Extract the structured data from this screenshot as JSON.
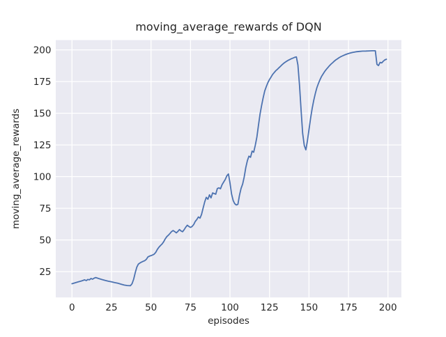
{
  "figure": {
    "kind": "matplotlib-seaborn-figure",
    "background": "#ffffff"
  },
  "chart_data": {
    "type": "line",
    "title": "moving_average_rewards of DQN",
    "xlabel": "episodes",
    "ylabel": "moving_average_rewards",
    "x_ticks": [
      0,
      25,
      50,
      75,
      100,
      125,
      150,
      175,
      200
    ],
    "y_ticks": [
      25,
      50,
      75,
      100,
      125,
      150,
      175,
      200
    ],
    "xlim": [
      -10.3,
      208.5
    ],
    "ylim": [
      4.6,
      207.7
    ],
    "grid": true,
    "legend": "none",
    "style": {
      "plot_background": "#eaeaf2",
      "grid_color": "#ffffff",
      "text_color": "#262626",
      "line_color": "#4c72b0",
      "line_width": 1.8
    },
    "series": [
      {
        "name": "moving_average_rewards",
        "color": "#4c72b0",
        "points": [
          [
            0,
            15.4
          ],
          [
            2,
            16.2
          ],
          [
            4,
            16.9
          ],
          [
            6,
            17.6
          ],
          [
            8,
            18.5
          ],
          [
            9,
            17.9
          ],
          [
            10,
            18.8
          ],
          [
            11,
            18.5
          ],
          [
            12,
            19.6
          ],
          [
            13,
            19.0
          ],
          [
            14,
            19.8
          ],
          [
            15,
            20.3
          ],
          [
            17,
            19.5
          ],
          [
            19,
            18.7
          ],
          [
            21,
            18.0
          ],
          [
            23,
            17.4
          ],
          [
            25,
            16.9
          ],
          [
            27,
            16.3
          ],
          [
            29,
            15.8
          ],
          [
            31,
            15.1
          ],
          [
            33,
            14.4
          ],
          [
            35,
            14.0
          ],
          [
            37,
            13.9
          ],
          [
            38,
            15.5
          ],
          [
            39,
            19.0
          ],
          [
            40,
            24.0
          ],
          [
            41,
            28.5
          ],
          [
            42,
            31.0
          ],
          [
            43,
            31.8
          ],
          [
            44,
            32.5
          ],
          [
            45,
            33.1
          ],
          [
            46,
            33.6
          ],
          [
            47,
            34.6
          ],
          [
            48,
            36.5
          ],
          [
            49,
            37.2
          ],
          [
            50,
            37.6
          ],
          [
            51,
            38.1
          ],
          [
            52,
            38.7
          ],
          [
            53,
            40.2
          ],
          [
            54,
            42.5
          ],
          [
            55,
            44.2
          ],
          [
            56,
            45.6
          ],
          [
            57,
            46.8
          ],
          [
            58,
            48.5
          ],
          [
            59,
            50.8
          ],
          [
            60,
            52.6
          ],
          [
            61,
            53.7
          ],
          [
            62,
            55.1
          ],
          [
            63,
            56.6
          ],
          [
            64,
            57.4
          ],
          [
            65,
            56.6
          ],
          [
            66,
            55.6
          ],
          [
            67,
            56.7
          ],
          [
            68,
            58.2
          ],
          [
            69,
            57.1
          ],
          [
            70,
            56.5
          ],
          [
            71,
            58.1
          ],
          [
            72,
            60.1
          ],
          [
            73,
            61.6
          ],
          [
            74,
            60.6
          ],
          [
            75,
            59.9
          ],
          [
            76,
            60.6
          ],
          [
            77,
            62.1
          ],
          [
            78,
            64.6
          ],
          [
            79,
            66.1
          ],
          [
            80,
            68.1
          ],
          [
            81,
            67.2
          ],
          [
            82,
            70.1
          ],
          [
            83,
            75.2
          ],
          [
            84,
            80.1
          ],
          [
            85,
            83.6
          ],
          [
            86,
            82.1
          ],
          [
            87,
            85.6
          ],
          [
            88,
            83.2
          ],
          [
            89,
            87.1
          ],
          [
            90,
            86.6
          ],
          [
            91,
            86.1
          ],
          [
            92,
            90.6
          ],
          [
            93,
            91.1
          ],
          [
            94,
            90.4
          ],
          [
            95,
            93.6
          ],
          [
            96,
            95.7
          ],
          [
            97,
            97.7
          ],
          [
            98,
            100.6
          ],
          [
            99,
            102.1
          ],
          [
            100,
            95.1
          ],
          [
            101,
            86.2
          ],
          [
            102,
            81.1
          ],
          [
            103,
            78.6
          ],
          [
            104,
            77.6
          ],
          [
            105,
            78.1
          ],
          [
            106,
            85.1
          ],
          [
            107,
            90.6
          ],
          [
            108,
            94.1
          ],
          [
            109,
            99.6
          ],
          [
            110,
            107.1
          ],
          [
            111,
            112.6
          ],
          [
            112,
            116.1
          ],
          [
            113,
            115.2
          ],
          [
            114,
            120.1
          ],
          [
            115,
            119.2
          ],
          [
            116,
            124.6
          ],
          [
            117,
            131.1
          ],
          [
            118,
            140.1
          ],
          [
            119,
            149.1
          ],
          [
            120,
            156.1
          ],
          [
            121,
            162.1
          ],
          [
            122,
            167.6
          ],
          [
            123,
            171.1
          ],
          [
            124,
            174.1
          ],
          [
            125,
            176.6
          ],
          [
            126,
            178.6
          ],
          [
            127,
            180.6
          ],
          [
            128,
            182.1
          ],
          [
            129,
            183.6
          ],
          [
            130,
            184.6
          ],
          [
            131,
            185.9
          ],
          [
            132,
            187.1
          ],
          [
            133,
            188.3
          ],
          [
            134,
            189.4
          ],
          [
            135,
            190.3
          ],
          [
            136,
            191.1
          ],
          [
            137,
            191.9
          ],
          [
            138,
            192.5
          ],
          [
            139,
            193.1
          ],
          [
            140,
            193.6
          ],
          [
            141,
            194.1
          ],
          [
            142,
            194.4
          ],
          [
            143,
            188.1
          ],
          [
            144,
            172.1
          ],
          [
            145,
            152.1
          ],
          [
            146,
            134.1
          ],
          [
            147,
            124.6
          ],
          [
            148,
            121.1
          ],
          [
            149,
            128.1
          ],
          [
            150,
            137.1
          ],
          [
            151,
            146.1
          ],
          [
            152,
            153.6
          ],
          [
            153,
            160.1
          ],
          [
            154,
            165.6
          ],
          [
            155,
            170.1
          ],
          [
            156,
            173.6
          ],
          [
            157,
            176.6
          ],
          [
            158,
            179.1
          ],
          [
            159,
            181.1
          ],
          [
            160,
            183.1
          ],
          [
            161,
            184.6
          ],
          [
            162,
            186.1
          ],
          [
            163,
            187.6
          ],
          [
            164,
            188.8
          ],
          [
            165,
            189.9
          ],
          [
            166,
            191.1
          ],
          [
            167,
            192.1
          ],
          [
            168,
            192.9
          ],
          [
            169,
            193.8
          ],
          [
            170,
            194.5
          ],
          [
            171,
            195.1
          ],
          [
            172,
            195.7
          ],
          [
            173,
            196.2
          ],
          [
            174,
            196.7
          ],
          [
            175,
            197.1
          ],
          [
            176,
            197.5
          ],
          [
            177,
            197.8
          ],
          [
            178,
            198.1
          ],
          [
            179,
            198.3
          ],
          [
            180,
            198.5
          ],
          [
            182,
            198.8
          ],
          [
            184,
            199.0
          ],
          [
            186,
            199.1
          ],
          [
            188,
            199.2
          ],
          [
            190,
            199.3
          ],
          [
            192,
            199.3
          ],
          [
            193,
            188.6
          ],
          [
            194,
            187.6
          ],
          [
            195,
            190.1
          ],
          [
            196,
            189.7
          ],
          [
            197,
            191.0
          ],
          [
            198,
            192.1
          ],
          [
            199,
            192.6
          ]
        ]
      }
    ]
  }
}
